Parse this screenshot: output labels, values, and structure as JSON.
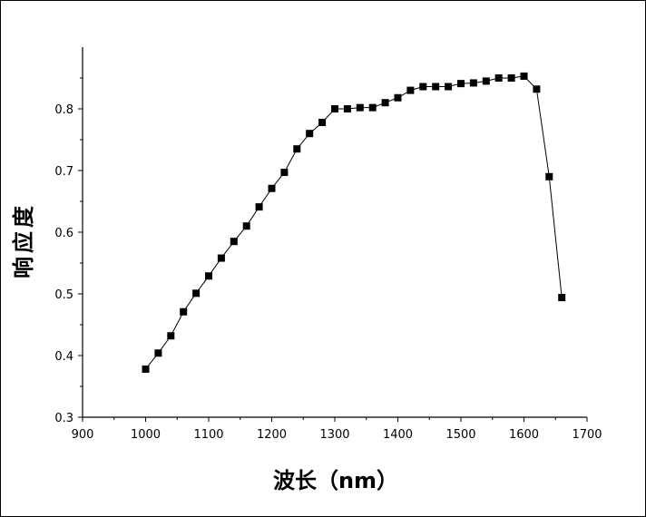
{
  "chart_data": {
    "type": "line",
    "xlabel": "波长（nm）",
    "ylabel": "响应度",
    "xlim": [
      900,
      1700
    ],
    "ylim": [
      0.3,
      0.9
    ],
    "xticks": [
      900,
      1000,
      1100,
      1200,
      1300,
      1400,
      1500,
      1600,
      1700
    ],
    "yticks": [
      0.3,
      0.4,
      0.5,
      0.6,
      0.7,
      0.8
    ],
    "xtick_labels": [
      "900",
      "1000",
      "1100",
      "1200",
      "1300",
      "1400",
      "1500",
      "1600",
      "1700"
    ],
    "ytick_labels": [
      "0.3",
      "0.4",
      "0.5",
      "0.6",
      "0.7",
      "0.8"
    ],
    "marker": "square",
    "line_color": "#000000",
    "marker_color": "#000000",
    "grid": false,
    "series": [
      {
        "x": [
          1000,
          1020,
          1040,
          1060,
          1080,
          1100,
          1120,
          1140,
          1160,
          1180,
          1200,
          1220,
          1240,
          1260,
          1280,
          1300,
          1320,
          1340,
          1360,
          1380,
          1400,
          1420,
          1440,
          1460,
          1480,
          1500,
          1520,
          1540,
          1560,
          1580,
          1600,
          1620,
          1640,
          1660
        ],
        "y": [
          0.378,
          0.404,
          0.432,
          0.471,
          0.501,
          0.529,
          0.558,
          0.585,
          0.61,
          0.641,
          0.671,
          0.697,
          0.735,
          0.76,
          0.778,
          0.8,
          0.8,
          0.802,
          0.802,
          0.81,
          0.818,
          0.83,
          0.836,
          0.836,
          0.836,
          0.841,
          0.842,
          0.845,
          0.85,
          0.85,
          0.853,
          0.832,
          0.69,
          0.494
        ]
      }
    ]
  }
}
